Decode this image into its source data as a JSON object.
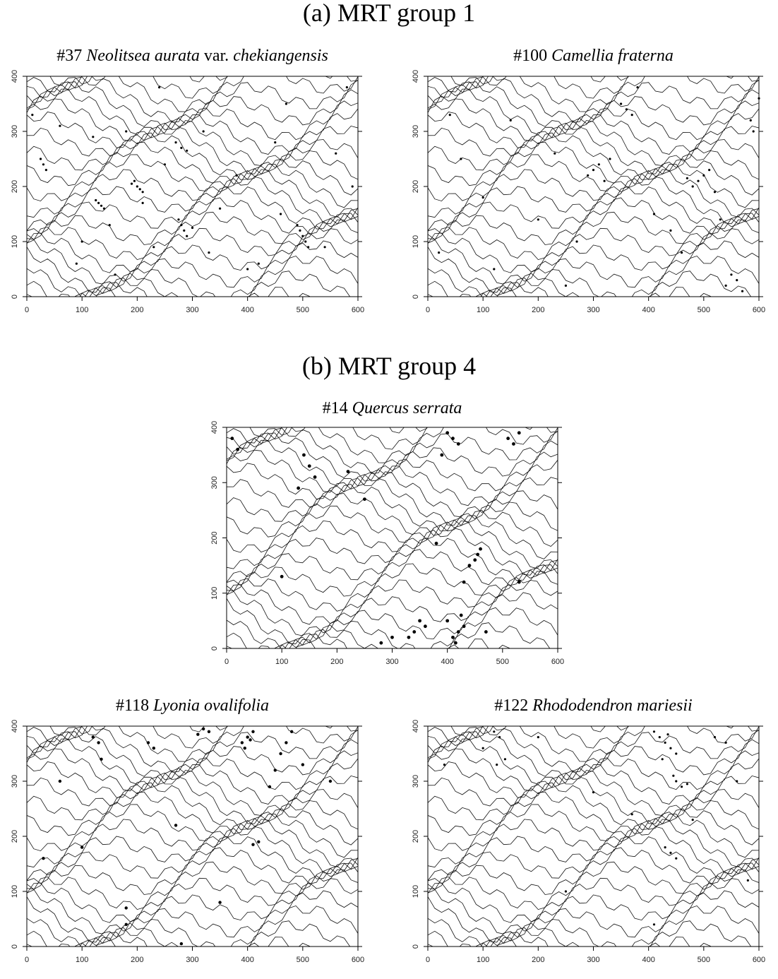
{
  "headings": [
    "(a) MRT group 1",
    "(b) MRT group 4"
  ],
  "chart_data": [
    {
      "type": "scatter",
      "title_parts": [
        {
          "text": "#37",
          "italic": false
        },
        {
          "text": "Neolitsea aurata",
          "italic": true
        },
        {
          "text": "var.",
          "italic": false
        },
        {
          "text": "chekiangensis",
          "italic": true
        }
      ],
      "color": "#000000",
      "marker_size": 1.6,
      "x": [
        130,
        135,
        125,
        140,
        200,
        205,
        195,
        210,
        190,
        280,
        285,
        275,
        290,
        300,
        500,
        505,
        495,
        510,
        490,
        280,
        270,
        290,
        30,
        25,
        35,
        120,
        180,
        230,
        250,
        330,
        380,
        420,
        460,
        560,
        580,
        60,
        90,
        150,
        210,
        350,
        400,
        450,
        540,
        590,
        10,
        240,
        320,
        470,
        100,
        160
      ],
      "y": [
        170,
        165,
        175,
        160,
        200,
        195,
        210,
        190,
        205,
        130,
        120,
        140,
        110,
        125,
        110,
        100,
        120,
        90,
        130,
        270,
        280,
        265,
        240,
        250,
        230,
        290,
        300,
        90,
        240,
        80,
        220,
        60,
        150,
        260,
        380,
        310,
        60,
        130,
        170,
        160,
        50,
        280,
        90,
        200,
        330,
        380,
        300,
        350,
        100,
        40
      ],
      "xlim": [
        0,
        600
      ],
      "ylim": [
        0,
        400
      ],
      "xticks": [
        0,
        100,
        200,
        300,
        400,
        500,
        600
      ],
      "yticks": [
        0,
        100,
        200,
        300,
        400
      ]
    },
    {
      "type": "scatter",
      "title_parts": [
        {
          "text": "#100",
          "italic": false
        },
        {
          "text": "Camellia fraterna",
          "italic": true
        }
      ],
      "color": "#000000",
      "marker_size": 1.6,
      "x": [
        300,
        310,
        290,
        320,
        330,
        490,
        500,
        480,
        510,
        520,
        470,
        550,
        560,
        540,
        570,
        360,
        370,
        350,
        590,
        585,
        40,
        60,
        150,
        230,
        270,
        410,
        440,
        600,
        20,
        120,
        200,
        380,
        460,
        530,
        100,
        250
      ],
      "y": [
        230,
        240,
        220,
        210,
        250,
        210,
        220,
        200,
        230,
        190,
        215,
        40,
        30,
        20,
        10,
        340,
        330,
        350,
        300,
        320,
        330,
        250,
        320,
        260,
        100,
        150,
        120,
        360,
        80,
        50,
        140,
        380,
        80,
        140,
        180,
        20
      ],
      "xlim": [
        0,
        600
      ],
      "ylim": [
        0,
        400
      ],
      "xticks": [
        0,
        100,
        200,
        300,
        400,
        500,
        600
      ],
      "yticks": [
        0,
        100,
        200,
        300,
        400
      ]
    },
    {
      "type": "scatter",
      "title_parts": [
        {
          "text": "#14",
          "italic": false
        },
        {
          "text": "Quercus serrata",
          "italic": true
        }
      ],
      "color": "#000000",
      "marker_size": 2.4,
      "x": [
        420,
        410,
        430,
        400,
        415,
        425,
        360,
        350,
        340,
        330,
        410,
        400,
        420,
        390,
        450,
        455,
        440,
        460,
        430,
        140,
        150,
        130,
        160,
        520,
        510,
        530,
        10,
        20,
        530,
        300,
        280,
        470,
        220,
        380,
        250,
        100
      ],
      "y": [
        30,
        20,
        40,
        50,
        10,
        60,
        40,
        50,
        30,
        20,
        380,
        390,
        370,
        350,
        160,
        170,
        150,
        180,
        120,
        350,
        330,
        290,
        310,
        370,
        380,
        390,
        380,
        360,
        120,
        20,
        10,
        30,
        320,
        190,
        270,
        130
      ],
      "xlim": [
        0,
        600
      ],
      "ylim": [
        0,
        400
      ],
      "xticks": [
        0,
        100,
        200,
        300,
        400,
        500,
        600
      ],
      "yticks": [
        0,
        100,
        200,
        300,
        400
      ]
    },
    {
      "type": "scatter",
      "title_parts": [
        {
          "text": "#118",
          "italic": false
        },
        {
          "text": "Lyonia ovalifolia",
          "italic": true
        }
      ],
      "color": "#000000",
      "marker_size": 2.2,
      "x": [
        400,
        390,
        410,
        395,
        405,
        130,
        120,
        135,
        320,
        330,
        310,
        470,
        460,
        480,
        450,
        220,
        230,
        410,
        420,
        60,
        100,
        180,
        270,
        350,
        180,
        280,
        550,
        440,
        30,
        500
      ],
      "y": [
        380,
        370,
        390,
        360,
        375,
        370,
        380,
        340,
        395,
        390,
        385,
        370,
        350,
        390,
        320,
        370,
        360,
        185,
        190,
        300,
        180,
        40,
        220,
        80,
        70,
        5,
        300,
        290,
        160,
        330
      ],
      "xlim": [
        0,
        600
      ],
      "ylim": [
        0,
        400
      ],
      "xticks": [
        0,
        100,
        200,
        300,
        400,
        500,
        600
      ],
      "yticks": [
        0,
        100,
        200,
        300,
        400
      ]
    },
    {
      "type": "scatter",
      "title_parts": [
        {
          "text": "#122",
          "italic": false
        },
        {
          "text": "Rhododendron mariesii",
          "italic": true
        }
      ],
      "color": "#000000",
      "marker_size": 1.6,
      "x": [
        430,
        420,
        440,
        410,
        450,
        425,
        435,
        450,
        460,
        445,
        470,
        130,
        140,
        125,
        120,
        440,
        430,
        450,
        520,
        540,
        100,
        200,
        300,
        370,
        480,
        560,
        580,
        30,
        250,
        410
      ],
      "y": [
        370,
        380,
        360,
        390,
        350,
        340,
        385,
        300,
        290,
        310,
        295,
        380,
        340,
        330,
        390,
        170,
        180,
        160,
        380,
        370,
        360,
        380,
        280,
        240,
        230,
        300,
        120,
        330,
        100,
        40
      ],
      "xlim": [
        0,
        600
      ],
      "ylim": [
        0,
        400
      ],
      "xticks": [
        0,
        100,
        200,
        300,
        400,
        500,
        600
      ],
      "yticks": [
        0,
        100,
        200,
        300,
        400
      ]
    }
  ]
}
